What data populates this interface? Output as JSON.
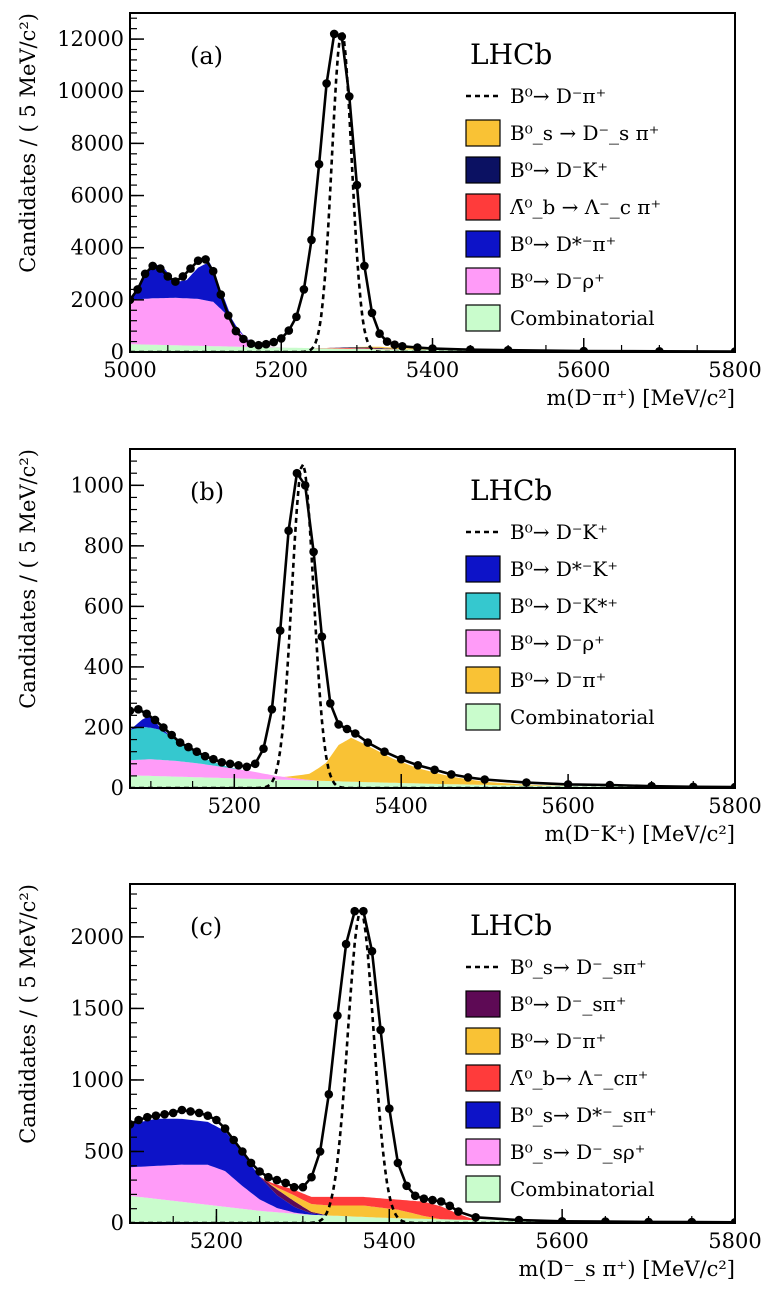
{
  "colors": {
    "yellow": "#f9c235",
    "navy": "#0b1162",
    "red": "#ff3b3b",
    "blue": "#0d13c8",
    "pink": "#ff9bf8",
    "green": "#c9fccc",
    "teal": "#35c8cf",
    "purple": "#5e0a55"
  },
  "chart_data": [
    {
      "type": "area",
      "panel_label": "(a)",
      "experiment": "LHCb",
      "xlabel": "m(D⁻π⁺) [MeV/c²]",
      "ylabel": "Candidates / ( 5 MeV/c²)",
      "xlim": [
        5000,
        5800
      ],
      "ylim": [
        0,
        13000
      ],
      "xticks": [
        5000,
        5200,
        5400,
        5600,
        5800
      ],
      "yticks": [
        0,
        2000,
        4000,
        6000,
        8000,
        10000,
        12000
      ],
      "signal_peak": {
        "mean": 5280,
        "amplitude": 12300,
        "width": 13
      },
      "legend": [
        {
          "label": "B⁰→ D⁻π⁺",
          "style": "dashed",
          "color": "#000000"
        },
        {
          "label": "B⁰_s → D⁻_s π⁺",
          "style": "fill",
          "color": "#f9c235"
        },
        {
          "label": "B⁰→ D⁻K⁺",
          "style": "fill",
          "color": "#0b1162"
        },
        {
          "label": "Λ̄⁰_b → Λ⁻_c π⁺",
          "style": "fill",
          "color": "#ff3b3b"
        },
        {
          "label": "B⁰→ D*⁻π⁺",
          "style": "fill",
          "color": "#0d13c8"
        },
        {
          "label": "B⁰→ D⁻ρ⁺",
          "style": "fill",
          "color": "#ff9bf8"
        },
        {
          "label": "Combinatorial",
          "style": "fill",
          "color": "#c9fccc"
        }
      ],
      "series": [
        {
          "name": "Combinatorial",
          "color": "#c9fccc",
          "x": [
            5000,
            5100,
            5200,
            5300,
            5400,
            5500,
            5600,
            5700,
            5800
          ],
          "y": [
            300,
            230,
            170,
            120,
            90,
            60,
            40,
            25,
            15
          ]
        },
        {
          "name": "B⁰→ D⁻ρ⁺",
          "color": "#ff9bf8",
          "x": [
            5000,
            5030,
            5060,
            5090,
            5110,
            5125,
            5140,
            5155,
            5170,
            5190,
            5210
          ],
          "y": [
            1700,
            1780,
            1820,
            1800,
            1700,
            1300,
            700,
            300,
            90,
            10,
            0
          ]
        },
        {
          "name": "B⁰→ D*⁻π⁺",
          "color": "#0d13c8",
          "x": [
            5000,
            5015,
            5030,
            5045,
            5060,
            5075,
            5090,
            5105,
            5120,
            5135,
            5150,
            5170
          ],
          "y": [
            0,
            600,
            1350,
            1150,
            600,
            700,
            1200,
            1500,
            700,
            150,
            20,
            0
          ]
        },
        {
          "name": "Λ̄⁰_b → Λ⁻_c π⁺",
          "color": "#ff3b3b",
          "x": [
            5240,
            5280,
            5320,
            5360
          ],
          "y": [
            0,
            30,
            25,
            0
          ]
        },
        {
          "name": "B⁰→ D⁻K⁺",
          "color": "#0b1162",
          "x": [
            5260,
            5300,
            5330,
            5360
          ],
          "y": [
            0,
            30,
            30,
            0
          ]
        },
        {
          "name": "B⁰_s → D⁻_s π⁺",
          "color": "#f9c235",
          "x": [
            5280,
            5330,
            5370,
            5400
          ],
          "y": [
            0,
            40,
            40,
            0
          ]
        }
      ],
      "data_points": {
        "x": [
          5000,
          5010,
          5020,
          5030,
          5040,
          5050,
          5060,
          5070,
          5080,
          5090,
          5100,
          5110,
          5120,
          5130,
          5140,
          5150,
          5160,
          5170,
          5180,
          5190,
          5200,
          5210,
          5220,
          5230,
          5240,
          5250,
          5260,
          5270,
          5280,
          5290,
          5300,
          5310,
          5320,
          5330,
          5340,
          5350,
          5360,
          5380,
          5400,
          5450,
          5500,
          5600,
          5700,
          5800
        ],
        "y": [
          2000,
          2400,
          3000,
          3300,
          3200,
          2900,
          2700,
          2900,
          3200,
          3500,
          3550,
          3100,
          2200,
          1400,
          800,
          500,
          320,
          260,
          300,
          380,
          520,
          820,
          1350,
          2400,
          4300,
          7200,
          10300,
          12200,
          12100,
          9800,
          6400,
          3300,
          1500,
          700,
          400,
          280,
          220,
          170,
          130,
          90,
          70,
          40,
          25,
          15
        ]
      }
    },
    {
      "type": "area",
      "panel_label": "(b)",
      "experiment": "LHCb",
      "xlabel": "m(D⁻K⁺) [MeV/c²]",
      "ylabel": "Candidates / ( 5 MeV/c²)",
      "xlim": [
        5075,
        5800
      ],
      "ylim": [
        0,
        1120
      ],
      "xticks": [
        5200,
        5400,
        5600,
        5800
      ],
      "yticks": [
        0,
        200,
        400,
        600,
        800,
        1000
      ],
      "signal_peak": {
        "mean": 5282,
        "amplitude": 1070,
        "width": 13
      },
      "legend": [
        {
          "label": "B⁰→ D⁻K⁺",
          "style": "dashed",
          "color": "#000000"
        },
        {
          "label": "B⁰→ D*⁻K⁺",
          "style": "fill",
          "color": "#0d13c8"
        },
        {
          "label": "B⁰→ D⁻K*⁺",
          "style": "fill",
          "color": "#35c8cf"
        },
        {
          "label": "B⁰→ D⁻ρ⁺",
          "style": "fill",
          "color": "#ff9bf8"
        },
        {
          "label": "B⁰→ D⁻π⁺",
          "style": "fill",
          "color": "#f9c235"
        },
        {
          "label": "Combinatorial",
          "style": "fill",
          "color": "#c9fccc"
        }
      ],
      "series": [
        {
          "name": "Combinatorial",
          "color": "#c9fccc",
          "x": [
            5075,
            5150,
            5250,
            5350,
            5450,
            5550,
            5650,
            5800
          ],
          "y": [
            42,
            36,
            28,
            20,
            13,
            8,
            5,
            2
          ]
        },
        {
          "name": "B⁰→ D⁻ρ⁺",
          "color": "#ff9bf8",
          "x": [
            5075,
            5100,
            5130,
            5160,
            5190,
            5220,
            5250,
            5280,
            5300
          ],
          "y": [
            50,
            55,
            52,
            45,
            35,
            25,
            12,
            4,
            0
          ]
        },
        {
          "name": "B⁰→ D⁻K*⁺",
          "color": "#35c8cf",
          "x": [
            5075,
            5090,
            5110,
            5130,
            5150,
            5170,
            5190,
            5210
          ],
          "y": [
            100,
            108,
            100,
            70,
            40,
            15,
            4,
            0
          ]
        },
        {
          "name": "B⁰→ D*⁻K⁺",
          "color": "#0d13c8",
          "x": [
            5075,
            5090,
            5100,
            5110,
            5125
          ],
          "y": [
            0,
            25,
            40,
            10,
            0
          ]
        },
        {
          "name": "B⁰→ D⁻π⁺",
          "color": "#f9c235",
          "x": [
            5260,
            5290,
            5310,
            5325,
            5340,
            5360,
            5390,
            5420,
            5460,
            5500,
            5550,
            5600
          ],
          "y": [
            0,
            20,
            60,
            120,
            145,
            120,
            80,
            50,
            25,
            10,
            3,
            0
          ]
        }
      ],
      "data_points": {
        "x": [
          5075,
          5085,
          5095,
          5105,
          5115,
          5125,
          5135,
          5145,
          5155,
          5165,
          5175,
          5185,
          5195,
          5205,
          5215,
          5225,
          5235,
          5245,
          5255,
          5265,
          5275,
          5285,
          5295,
          5305,
          5315,
          5325,
          5335,
          5345,
          5360,
          5380,
          5400,
          5420,
          5440,
          5460,
          5480,
          5500,
          5550,
          5600,
          5650,
          5700,
          5750,
          5800
        ],
        "y": [
          255,
          260,
          245,
          225,
          200,
          175,
          150,
          135,
          120,
          105,
          95,
          85,
          80,
          75,
          70,
          80,
          130,
          260,
          520,
          850,
          1040,
          1000,
          780,
          500,
          280,
          210,
          195,
          180,
          150,
          120,
          95,
          75,
          60,
          45,
          35,
          28,
          18,
          12,
          10,
          6,
          4,
          3
        ]
      }
    },
    {
      "type": "area",
      "panel_label": "(c)",
      "experiment": "LHCb",
      "xlabel": "m(D⁻_s π⁺) [MeV/c²]",
      "ylabel": "Candidates / ( 5 MeV/c²)",
      "xlim": [
        5100,
        5800
      ],
      "ylim": [
        0,
        2370
      ],
      "xticks": [
        5200,
        5400,
        5600,
        5800
      ],
      "yticks": [
        0,
        500,
        1000,
        1500,
        2000
      ],
      "signal_peak": {
        "mean": 5367,
        "amplitude": 2180,
        "width": 15
      },
      "legend": [
        {
          "label": "B⁰_s→ D⁻_sπ⁺",
          "style": "dashed",
          "color": "#000000"
        },
        {
          "label": "B⁰→ D⁻_sπ⁺",
          "style": "fill",
          "color": "#5e0a55"
        },
        {
          "label": "B⁰→ D⁻π⁺",
          "style": "fill",
          "color": "#f9c235"
        },
        {
          "label": "Λ̄⁰_b→ Λ⁻_cπ⁺",
          "style": "fill",
          "color": "#ff3b3b"
        },
        {
          "label": "B⁰_s→ D*⁻_sπ⁺",
          "style": "fill",
          "color": "#0d13c8"
        },
        {
          "label": "B⁰_s→ D⁻_sρ⁺",
          "style": "fill",
          "color": "#ff9bf8"
        },
        {
          "label": "Combinatorial",
          "style": "fill",
          "color": "#c9fccc"
        }
      ],
      "series": [
        {
          "name": "Combinatorial",
          "color": "#c9fccc",
          "x": [
            5100,
            5150,
            5200,
            5250,
            5300,
            5400,
            5500,
            5600,
            5800
          ],
          "y": [
            190,
            155,
            120,
            85,
            60,
            35,
            20,
            12,
            6
          ]
        },
        {
          "name": "B⁰_s→ D⁻_sρ⁺",
          "color": "#ff9bf8",
          "x": [
            5100,
            5130,
            5160,
            5190,
            5210,
            5230,
            5250,
            5270,
            5290,
            5310
          ],
          "y": [
            200,
            230,
            260,
            280,
            250,
            160,
            80,
            30,
            8,
            0
          ]
        },
        {
          "name": "B⁰_s→ D*⁻_sπ⁺",
          "color": "#0d13c8",
          "x": [
            5100,
            5130,
            5160,
            5190,
            5210,
            5230,
            5250,
            5270,
            5290,
            5310,
            5330
          ],
          "y": [
            300,
            330,
            320,
            300,
            280,
            230,
            160,
            90,
            40,
            10,
            0
          ]
        },
        {
          "name": "B⁰→ D⁻_sπ⁺",
          "color": "#5e0a55",
          "x": [
            5250,
            5270,
            5290,
            5310,
            5330
          ],
          "y": [
            0,
            40,
            40,
            10,
            0
          ]
        },
        {
          "name": "B⁰→ D⁻π⁺",
          "color": "#f9c235",
          "x": [
            5260,
            5290,
            5330,
            5370,
            5410,
            5440,
            5460
          ],
          "y": [
            0,
            40,
            70,
            80,
            60,
            20,
            0
          ]
        },
        {
          "name": "Λ̄⁰_b→ Λ⁻_cπ⁺",
          "color": "#ff3b3b",
          "x": [
            5250,
            5290,
            5330,
            5370,
            5410,
            5440,
            5460,
            5480,
            5500
          ],
          "y": [
            0,
            40,
            60,
            60,
            70,
            100,
            90,
            40,
            0
          ]
        }
      ],
      "data_points": {
        "x": [
          5100,
          5110,
          5120,
          5130,
          5140,
          5150,
          5160,
          5170,
          5180,
          5190,
          5200,
          5210,
          5220,
          5230,
          5240,
          5250,
          5260,
          5270,
          5280,
          5290,
          5300,
          5310,
          5320,
          5330,
          5340,
          5350,
          5360,
          5370,
          5380,
          5390,
          5400,
          5410,
          5420,
          5430,
          5440,
          5450,
          5460,
          5470,
          5480,
          5500,
          5550,
          5600,
          5650,
          5700,
          5750,
          5800
        ],
        "y": [
          690,
          720,
          740,
          750,
          760,
          770,
          790,
          780,
          770,
          750,
          720,
          660,
          580,
          500,
          420,
          360,
          320,
          300,
          280,
          250,
          250,
          320,
          500,
          900,
          1450,
          1950,
          2180,
          2180,
          1900,
          1350,
          800,
          420,
          260,
          190,
          170,
          160,
          150,
          120,
          80,
          40,
          20,
          12,
          10,
          8,
          6,
          5
        ]
      }
    }
  ]
}
